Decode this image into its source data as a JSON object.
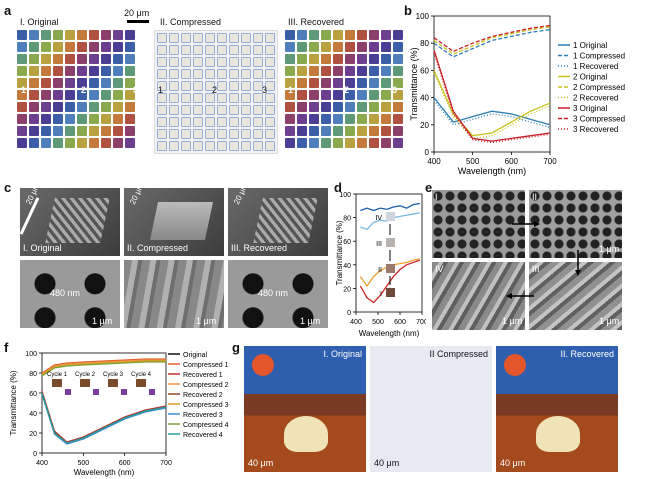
{
  "panels": {
    "a": {
      "label": "a",
      "titles": [
        "I. Original",
        "II. Compressed",
        "III. Recovered"
      ],
      "scalebar": "20 μm",
      "markers": [
        "1",
        "2",
        "3"
      ],
      "colors": [
        "#3a5fa8",
        "#4f7fba",
        "#5f9a78",
        "#8aa84c",
        "#b9a140",
        "#c47a3a",
        "#b0503e",
        "#8c3f6a",
        "#6f3f8f",
        "#4a3f95"
      ]
    },
    "b": {
      "label": "b"
    },
    "c": {
      "label": "c",
      "titles": [
        "I. Original",
        "II. Compressed",
        "III. Recovered"
      ],
      "top_scale": "20 μm",
      "pitch": "480 nm",
      "bottom_scale": "1 μm"
    },
    "d": {
      "label": "d",
      "stages": [
        "IV",
        "III",
        "II",
        "I"
      ]
    },
    "e": {
      "label": "e",
      "quadrants": [
        "I",
        "II",
        "III",
        "IV"
      ],
      "scale": "1 μm"
    },
    "f": {
      "label": "f",
      "cycles": [
        "Cycle 1",
        "Cycle 2",
        "Cycle 3",
        "Cycle 4"
      ]
    },
    "g": {
      "label": "g",
      "titles": [
        "I. Original",
        "II Compressed",
        "II. Recovered"
      ],
      "scale": "40 μm"
    }
  },
  "chart_data": [
    {
      "panel": "b",
      "type": "line",
      "xlabel": "Wavelength (nm)",
      "ylabel": "Transmittance (%)",
      "xlim": [
        400,
        700
      ],
      "ylim": [
        0,
        100
      ],
      "xticks": [
        400,
        500,
        600,
        700
      ],
      "yticks": [
        0,
        20,
        40,
        60,
        80,
        100
      ],
      "x": [
        400,
        450,
        500,
        550,
        600,
        650,
        700
      ],
      "legend_position": "right",
      "series": [
        {
          "name": "1 Original",
          "color": "#2f7fb5",
          "dash": "solid",
          "values": [
            40,
            22,
            26,
            30,
            28,
            24,
            20
          ]
        },
        {
          "name": "1 Compressed",
          "color": "#2f7fb5",
          "dash": "dash",
          "values": [
            80,
            70,
            76,
            82,
            85,
            88,
            90
          ]
        },
        {
          "name": "1 Recovered",
          "color": "#2f7fb5",
          "dash": "dot",
          "values": [
            38,
            20,
            24,
            28,
            26,
            22,
            18
          ]
        },
        {
          "name": "2 Original",
          "color": "#c9c21a",
          "dash": "solid",
          "values": [
            60,
            28,
            12,
            14,
            22,
            30,
            36
          ]
        },
        {
          "name": "2 Compressed",
          "color": "#c9c21a",
          "dash": "dash",
          "values": [
            82,
            72,
            78,
            84,
            87,
            90,
            92
          ]
        },
        {
          "name": "2 Recovered",
          "color": "#c9c21a",
          "dash": "dot",
          "values": [
            58,
            26,
            10,
            12,
            20,
            28,
            34
          ]
        },
        {
          "name": "3 Original",
          "color": "#c8202a",
          "dash": "solid",
          "values": [
            75,
            30,
            10,
            8,
            10,
            12,
            14
          ]
        },
        {
          "name": "3 Compressed",
          "color": "#c8202a",
          "dash": "dash",
          "values": [
            84,
            74,
            80,
            85,
            88,
            91,
            93
          ]
        },
        {
          "name": "3 Recovered",
          "color": "#c8202a",
          "dash": "dot",
          "values": [
            73,
            28,
            9,
            7,
            9,
            11,
            13
          ]
        }
      ]
    },
    {
      "panel": "d",
      "type": "line",
      "xlabel": "Wavelength (nm)",
      "ylabel": "Transmittance (%)",
      "xlim": [
        400,
        700
      ],
      "ylim": [
        0,
        100
      ],
      "xticks": [
        400,
        500,
        600,
        700
      ],
      "xtick_labels": [
        "400",
        "500",
        "600",
        "700"
      ],
      "extra_xtick_labels": [
        "400",
        "500",
        "600",
        "700"
      ],
      "yticks": [
        0,
        20,
        40,
        60,
        80,
        100
      ],
      "x": [
        420,
        450,
        480,
        510,
        540,
        570,
        600,
        630,
        660,
        690
      ],
      "series": [
        {
          "stage": "IV",
          "color": "#1f5fa8",
          "values": [
            86,
            88,
            86,
            88,
            87,
            89,
            90,
            88,
            91,
            92
          ]
        },
        {
          "stage": "III",
          "color": "#7ab8e0",
          "values": [
            72,
            70,
            76,
            78,
            77,
            80,
            81,
            82,
            83,
            84
          ]
        },
        {
          "stage": "II",
          "color": "#f0a030",
          "values": [
            30,
            22,
            30,
            35,
            38,
            40,
            41,
            42,
            44,
            45
          ]
        },
        {
          "stage": "I",
          "color": "#d02020",
          "values": [
            22,
            12,
            8,
            14,
            22,
            30,
            36,
            40,
            42,
            44
          ]
        }
      ]
    },
    {
      "panel": "f",
      "type": "line",
      "xlabel": "Wavelength (nm)",
      "ylabel": "Transmittance (%)",
      "xlim": [
        400,
        700
      ],
      "ylim": [
        0,
        100
      ],
      "xticks": [
        400,
        500,
        600,
        700
      ],
      "yticks": [
        0,
        20,
        40,
        60,
        80,
        100
      ],
      "x": [
        400,
        430,
        460,
        500,
        550,
        600,
        650,
        700
      ],
      "legend_position": "right",
      "series": [
        {
          "name": "Original",
          "color": "#111111",
          "values": [
            60,
            20,
            10,
            15,
            25,
            35,
            42,
            46
          ]
        },
        {
          "name": "Compressed 1",
          "color": "#e06030",
          "values": [
            80,
            88,
            90,
            91,
            92,
            93,
            94,
            94
          ]
        },
        {
          "name": "Recovered 1",
          "color": "#c03030",
          "values": [
            62,
            22,
            11,
            16,
            26,
            36,
            43,
            47
          ]
        },
        {
          "name": "Compressed 2",
          "color": "#f09040",
          "values": [
            79,
            87,
            89,
            90,
            91,
            92,
            93,
            93
          ]
        },
        {
          "name": "Recovered 2",
          "color": "#8a4a2a",
          "values": [
            61,
            21,
            10,
            15,
            25,
            35,
            42,
            46
          ]
        },
        {
          "name": "Compressed 3",
          "color": "#d0a020",
          "values": [
            78,
            86,
            88,
            89,
            90,
            91,
            92,
            92
          ]
        },
        {
          "name": "Recovered 3",
          "color": "#3a8fd0",
          "values": [
            59,
            19,
            9,
            14,
            24,
            34,
            41,
            45
          ]
        },
        {
          "name": "Compressed 4",
          "color": "#7fa03a",
          "values": [
            77,
            85,
            87,
            88,
            89,
            90,
            91,
            91
          ]
        },
        {
          "name": "Recovered 4",
          "color": "#2a9a9a",
          "values": [
            60,
            20,
            10,
            15,
            25,
            35,
            42,
            46
          ]
        }
      ]
    }
  ]
}
